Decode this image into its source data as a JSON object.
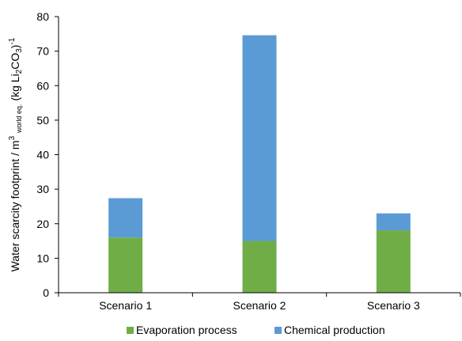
{
  "chart_data": {
    "type": "bar",
    "stacked": true,
    "categories": [
      "Scenario 1",
      "Scenario 2",
      "Scenario 3"
    ],
    "series": [
      {
        "name": "Evaporation process",
        "color": "#70ad47",
        "values": [
          16.0,
          15.0,
          18.1
        ]
      },
      {
        "name": "Chemical production",
        "color": "#5b9bd5",
        "values": [
          11.4,
          59.6,
          4.9
        ]
      }
    ],
    "title": "",
    "xlabel": "",
    "ylabel": {
      "pre": "Water scarcity footprint / m",
      "sup1": "3",
      "sub1": "world eq.",
      "mid": " (kg Li",
      "sub2": "2",
      "mid2": "CO",
      "sub3": "3",
      "post": ")",
      "sup2": "-1"
    },
    "ylim": [
      0,
      80
    ],
    "yticks": [
      0,
      10,
      20,
      30,
      40,
      50,
      60,
      70,
      80
    ],
    "grid": false,
    "legend_position": "bottom"
  }
}
